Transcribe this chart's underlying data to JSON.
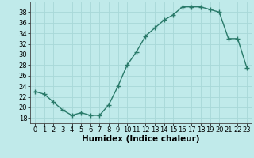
{
  "x": [
    0,
    1,
    2,
    3,
    4,
    5,
    6,
    7,
    8,
    9,
    10,
    11,
    12,
    13,
    14,
    15,
    16,
    17,
    18,
    19,
    20,
    21,
    22,
    23
  ],
  "y": [
    23,
    22.5,
    21,
    19.5,
    18.5,
    19,
    18.5,
    18.5,
    20.5,
    24,
    28,
    30.5,
    33.5,
    35,
    36.5,
    37.5,
    39,
    39,
    39,
    38.5,
    38,
    33,
    33,
    27.5
  ],
  "line_color": "#2a7a6a",
  "marker": "+",
  "marker_size": 4,
  "bg_color": "#c0eaea",
  "grid_color": "#a8d8d8",
  "xlabel": "Humidex (Indice chaleur)",
  "xlim": [
    -0.5,
    23.5
  ],
  "ylim": [
    17,
    40
  ],
  "yticks": [
    18,
    20,
    22,
    24,
    26,
    28,
    30,
    32,
    34,
    36,
    38
  ],
  "xticks": [
    0,
    1,
    2,
    3,
    4,
    5,
    6,
    7,
    8,
    9,
    10,
    11,
    12,
    13,
    14,
    15,
    16,
    17,
    18,
    19,
    20,
    21,
    22,
    23
  ],
  "tick_fontsize": 6,
  "xlabel_fontsize": 7.5,
  "line_width": 1.0
}
